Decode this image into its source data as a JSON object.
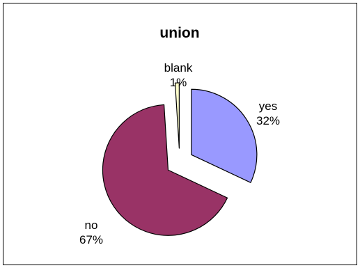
{
  "chart_data": {
    "type": "pie",
    "title": "union",
    "slices": [
      {
        "name": "yes",
        "value": 32,
        "percent_label": "32%",
        "color": "#9999FF"
      },
      {
        "name": "no",
        "value": 67,
        "percent_label": "67%",
        "color": "#993366"
      },
      {
        "name": "blank",
        "value": 1,
        "percent_label": "1%",
        "color": "#FFFFCC"
      }
    ],
    "exploded": true,
    "legend": "none"
  }
}
